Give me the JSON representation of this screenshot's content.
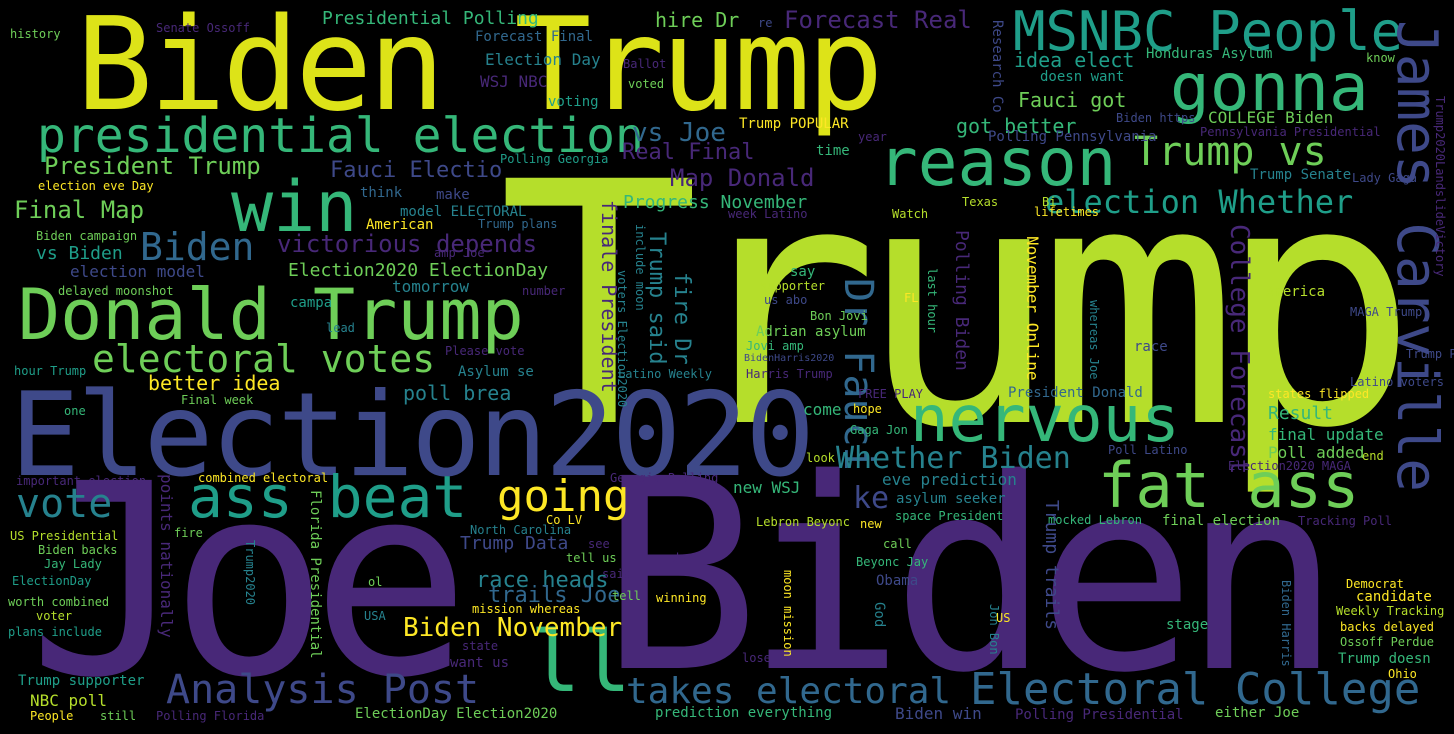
{
  "palette": {
    "background": "#000000",
    "yellow": "#fde725",
    "lime": "#b5de2b",
    "green": "#6ece58",
    "teal": "#35b779",
    "cyan": "#1f9e89",
    "blue": "#26828e",
    "steel": "#31688e",
    "indigo": "#3e4989",
    "purple": "#482878",
    "deep": "#440154"
  },
  "words": [
    "Trump",
    "Joe",
    "Biden",
    "Biden Trump",
    "Election2020",
    "MSNBC People",
    "gonna",
    "reason",
    "presidential election",
    "win",
    "Donald Trump",
    "nervous",
    "fat ass",
    "ass beat",
    "going",
    "Electoral College",
    "Analysis Post",
    "takes electoral",
    "ll",
    "vote",
    "electoral votes",
    "Biden",
    "Trump vs",
    "James Carville",
    "Dr Fauci",
    "election Whether",
    "Whether Biden",
    "President Trump",
    "Final Map",
    "victorious depends",
    "Map Donald",
    "Fauci Electio",
    "vs Joe",
    "Real Final",
    "Presidential Polling",
    "Forecast Real",
    "hire Dr",
    "College Forecast",
    "Biden November",
    "race heads",
    "trails Joe",
    "Trump Data",
    "Trump said",
    "fire Dr",
    "finale President",
    "Progress November",
    "Election2020 ElectionDay",
    "better idea",
    "poll brea",
    "vs Biden",
    "election model",
    "Fauci got",
    "got better",
    "idea elect",
    "Trump POPULAR",
    "COLLEGE Biden",
    "Result",
    "final update",
    "Poll added",
    "Honduras Asylum",
    "Research Co",
    "Election Day",
    "Forecast Final",
    "WSJ NBC",
    "voting",
    "Ballot",
    "voted",
    "re",
    "doesn want",
    "know",
    "history",
    "Senate Ossoff",
    "election eve Day",
    "Biden campaign",
    "delayed moonshot",
    "model ELECTORAL",
    "American",
    "Trump plans",
    "Polling Georgia",
    "think",
    "make",
    "hour Trump",
    "one",
    "important election",
    "US Presidential",
    "Biden backs",
    "Jay Lady",
    "ElectionDay",
    "worth combined",
    "voter",
    "plans include",
    "Trump supporter",
    "NBC poll",
    "People",
    "still",
    "Polling Florida",
    "ElectionDay Election2020",
    "prediction everything",
    "Biden win",
    "Polling Presidential",
    "either Joe",
    "Ohio",
    "Trump doesn",
    "Ossoff Perdue",
    "backs delayed",
    "Weekly Tracking",
    "candidate",
    "Democrat",
    "Tracking Poll",
    "final election",
    "mocked Lebron",
    "space President",
    "asylum seeker",
    "eve prediction",
    "Gaga Jon",
    "hope",
    "come",
    "new WSJ",
    "ke",
    "Lebron Beyonc",
    "new",
    "call",
    "Beyonc Jay",
    "Obama",
    "God",
    "moon mission",
    "Jon Bon",
    "US",
    "stage",
    "Biden Harris",
    "Trump trails",
    "lose",
    "winning",
    "tell",
    "said",
    "don",
    "see",
    "tell us",
    "mission whereas",
    "state",
    "want us",
    "Florida Presidential",
    "points nationally",
    "Trump2020",
    "ol",
    "USA",
    "fire",
    "Co LV",
    "North Carolina",
    "Georgia Polling",
    "combined electoral",
    "Final week",
    "Asylum se",
    "Please vote",
    "Latino Weekly",
    "voters Election2020",
    "include moon",
    "Harris Trump",
    "FREE PLAY",
    "Adrian asylum",
    "Jovi amp",
    "BidenHarris2020",
    "Bon Jovi",
    "supporter",
    "us abo",
    "say",
    "Polling Biden",
    "November Online",
    "last hour",
    "whereas Joe",
    "FL",
    "President Donald",
    "Poll Latino",
    "look",
    "end",
    "Election2020 MAGA",
    "Latino voters",
    "states flipped",
    "race",
    "Trump Pe",
    "MAGA Trump",
    "America",
    "lifetimes",
    "Texas",
    "Bi",
    "Watch",
    "week Latino",
    "Lady Gaga",
    "Trump Senate",
    "year",
    "time",
    "Polling Pennsylvania",
    "Pennsylvania Presidential",
    "Biden https",
    "Trump2020LandslideVictory",
    "tomorrow",
    "campa",
    "lead",
    "number",
    "amp Joe"
  ]
}
